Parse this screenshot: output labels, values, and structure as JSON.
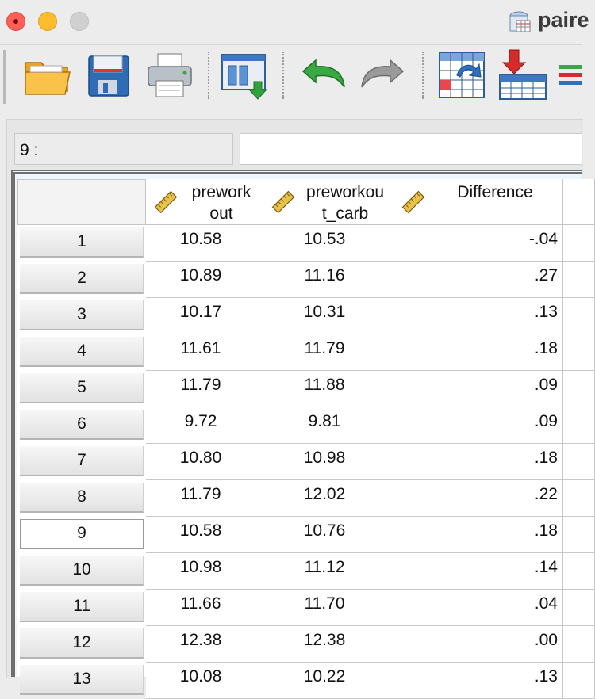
{
  "window": {
    "title": "paire"
  },
  "toolbar": {
    "buttons": [
      {
        "name": "open-data-icon"
      },
      {
        "name": "save-icon"
      },
      {
        "name": "print-icon"
      },
      {
        "name": "recall-dialog-icon"
      },
      {
        "name": "undo-icon"
      },
      {
        "name": "redo-icon"
      },
      {
        "name": "go-to-case-icon"
      },
      {
        "name": "insert-cases-icon"
      },
      {
        "name": "variables-icon"
      }
    ]
  },
  "cell_editor": {
    "reference": "9 :",
    "value": ""
  },
  "grid": {
    "columns": [
      {
        "label_line1": "prework",
        "label_line2": "out",
        "type_icon": "scale-ruler-icon"
      },
      {
        "label_line1": "preworkou",
        "label_line2": "t_carb",
        "type_icon": "scale-ruler-icon"
      },
      {
        "label_line1": "Difference",
        "label_line2": "",
        "type_icon": "scale-ruler-icon"
      }
    ],
    "rows": [
      {
        "num": "1",
        "v": [
          "10.58",
          "10.53",
          "-.04"
        ]
      },
      {
        "num": "2",
        "v": [
          "10.89",
          "11.16",
          ".27"
        ]
      },
      {
        "num": "3",
        "v": [
          "10.17",
          "10.31",
          ".13"
        ]
      },
      {
        "num": "4",
        "v": [
          "11.61",
          "11.79",
          ".18"
        ]
      },
      {
        "num": "5",
        "v": [
          "11.79",
          "11.88",
          ".09"
        ]
      },
      {
        "num": "6",
        "v": [
          "9.72",
          "9.81",
          ".09"
        ]
      },
      {
        "num": "7",
        "v": [
          "10.80",
          "10.98",
          ".18"
        ]
      },
      {
        "num": "8",
        "v": [
          "11.79",
          "12.02",
          ".22"
        ]
      },
      {
        "num": "9",
        "v": [
          "10.58",
          "10.76",
          ".18"
        ]
      },
      {
        "num": "10",
        "v": [
          "10.98",
          "11.12",
          ".14"
        ]
      },
      {
        "num": "11",
        "v": [
          "11.66",
          "11.70",
          ".04"
        ]
      },
      {
        "num": "12",
        "v": [
          "12.38",
          "12.38",
          ".00"
        ]
      },
      {
        "num": "13",
        "v": [
          "10.08",
          "10.22",
          ".13"
        ]
      }
    ],
    "selected_row": "9"
  }
}
